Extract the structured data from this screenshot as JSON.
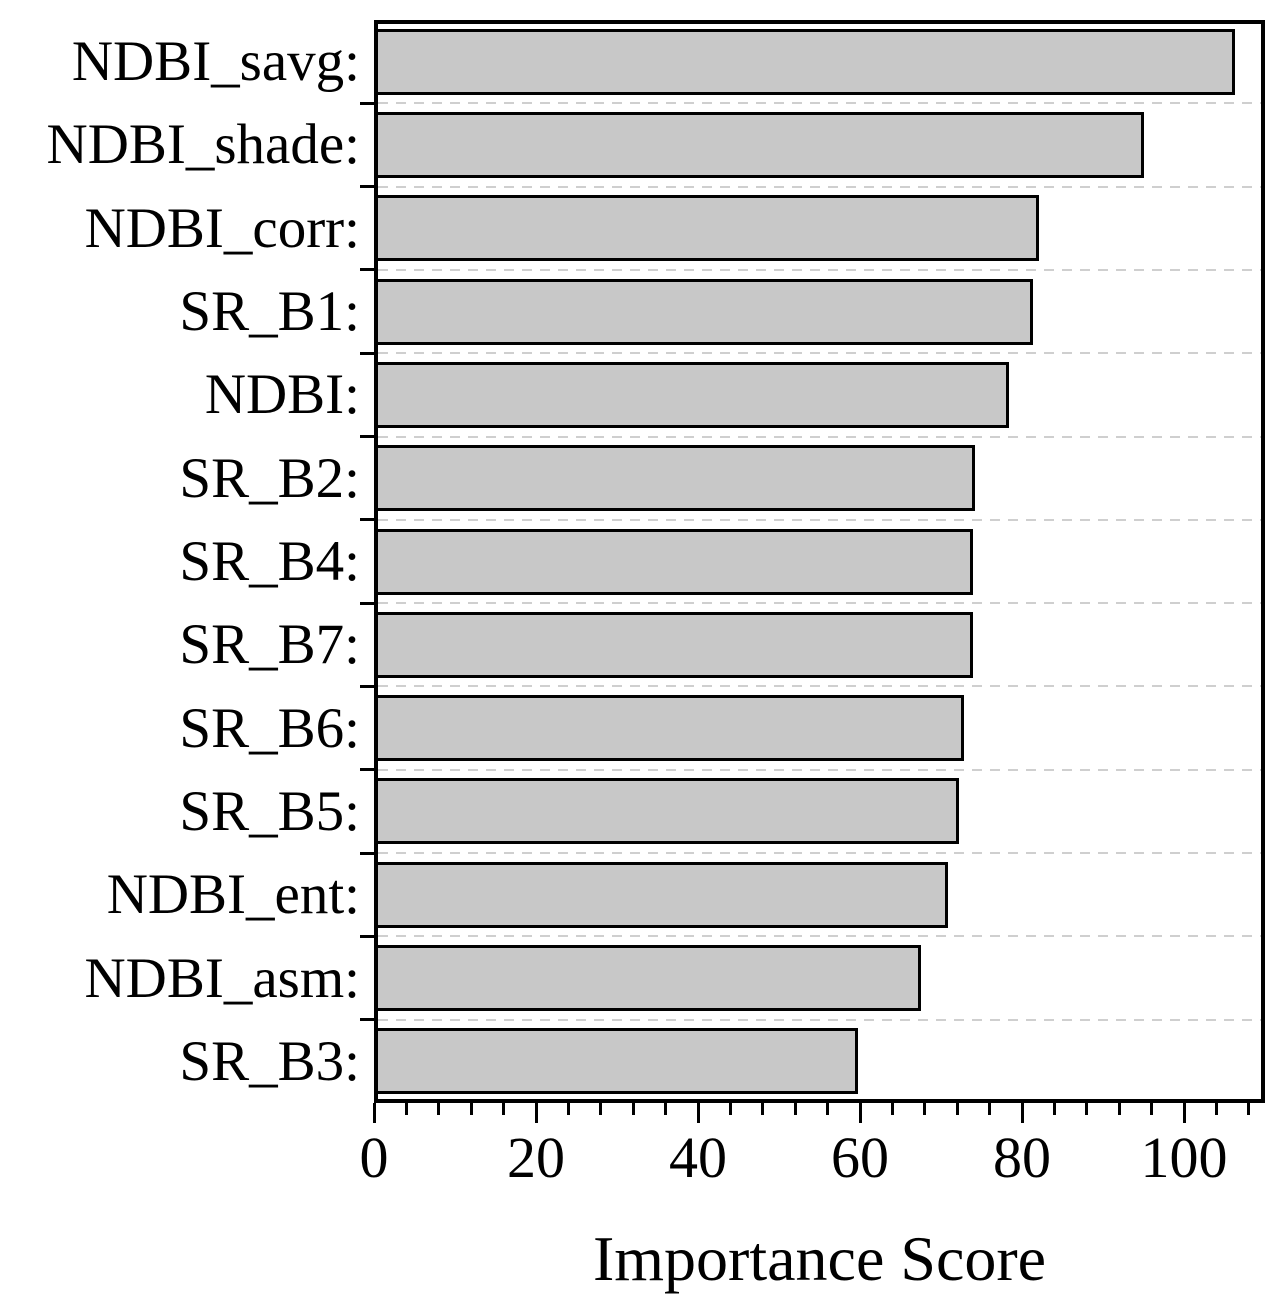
{
  "chart_data": {
    "type": "bar",
    "orientation": "horizontal",
    "title": "",
    "xlabel": "Importance Score",
    "ylabel": "",
    "categories": [
      "NDBI_savg:",
      "NDBI_shade:",
      "NDBI_corr:",
      "SR_B1:",
      "NDBI:",
      "SR_B2:",
      "SR_B4:",
      "SR_B7:",
      "SR_B6:",
      "SR_B5:",
      "NDBI_ent:",
      "NDBI_asm:",
      "SR_B3:"
    ],
    "values": [
      106.3,
      95.1,
      82.1,
      81.3,
      78.4,
      74.2,
      74.0,
      73.9,
      72.9,
      72.2,
      70.9,
      67.5,
      59.7
    ],
    "xlim": [
      0,
      110
    ],
    "x_major_ticks": [
      0,
      20,
      40,
      60,
      80,
      100
    ],
    "x_major_tick_labels": [
      "0",
      "20",
      "40",
      "60",
      "80",
      "100"
    ],
    "x_minor_step": 4,
    "grid": "horizontal dashed lines at category boundaries",
    "legend": "none",
    "colors": {
      "bar_fill": "#c8c8c8",
      "bar_edge": "#000000",
      "frame": "#000000",
      "grid": "#cfcfcf",
      "text": "#000000",
      "background": "#ffffff"
    }
  }
}
